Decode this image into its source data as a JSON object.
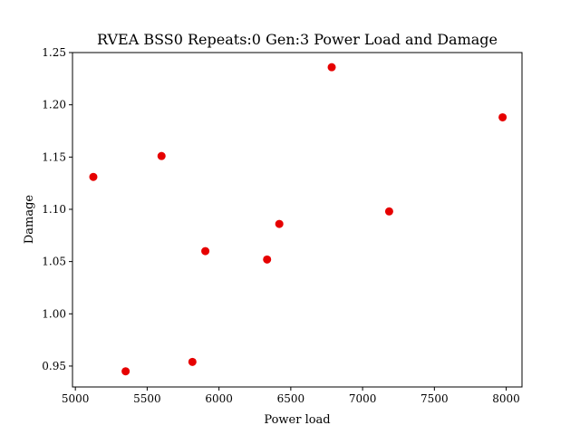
{
  "chart_data": {
    "type": "scatter",
    "title": "RVEA BSS0 Repeats:0 Gen:3 Power Load and Damage",
    "xlabel": "Power load",
    "ylabel": "Damage",
    "xlim": [
      4980,
      8110
    ],
    "ylim": [
      0.93,
      1.25
    ],
    "xticks": [
      5000,
      5500,
      6000,
      6500,
      7000,
      7500,
      8000
    ],
    "xtick_labels": [
      "5000",
      "5500",
      "6000",
      "6500",
      "7000",
      "7500",
      "8000"
    ],
    "yticks": [
      0.95,
      1.0,
      1.05,
      1.1,
      1.15,
      1.2,
      1.25
    ],
    "ytick_labels": [
      "0.95",
      "1.00",
      "1.05",
      "1.10",
      "1.15",
      "1.20",
      "1.25"
    ],
    "grid": false,
    "marker_color": "#e60000",
    "points": [
      {
        "x": 5125,
        "y": 1.131
      },
      {
        "x": 5350,
        "y": 0.945
      },
      {
        "x": 5600,
        "y": 1.151
      },
      {
        "x": 5815,
        "y": 0.954
      },
      {
        "x": 5905,
        "y": 1.06
      },
      {
        "x": 6335,
        "y": 1.052
      },
      {
        "x": 6420,
        "y": 1.086
      },
      {
        "x": 6785,
        "y": 1.236
      },
      {
        "x": 7185,
        "y": 1.098
      },
      {
        "x": 7975,
        "y": 1.188
      }
    ]
  }
}
